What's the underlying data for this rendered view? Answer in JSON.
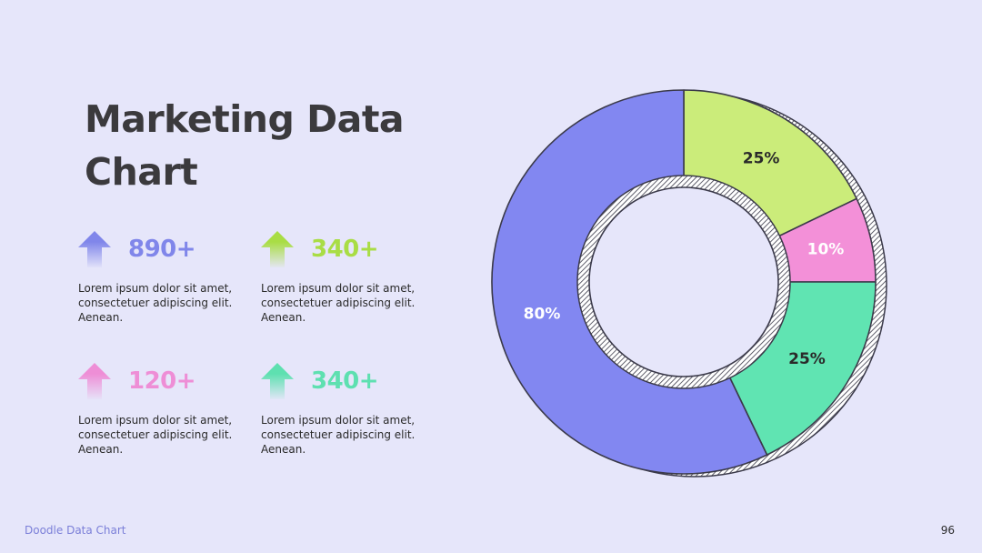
{
  "title": "Marketing Data Chart",
  "stats": [
    {
      "value": "890+",
      "color": "#8086ea",
      "description": "Lorem ipsum dolor sit amet, consectetuer adipiscing elit. Aenean."
    },
    {
      "value": "340+",
      "color": "#a9dd45",
      "description": "Lorem ipsum dolor sit amet, consectetuer adipiscing elit. Aenean."
    },
    {
      "value": "120+",
      "color": "#ee8ed6",
      "description": "Lorem ipsum dolor sit amet, consectetuer adipiscing elit. Aenean."
    },
    {
      "value": "340+",
      "color": "#5ee0b0",
      "description": "Lorem ipsum dolor sit amet, consectetuer adipiscing elit. Aenean."
    }
  ],
  "chart_data": {
    "type": "pie",
    "style": "donut",
    "slices": [
      {
        "label": "25%",
        "value": 25,
        "color": "#cbec7a",
        "label_color": "#2a2a2a"
      },
      {
        "label": "10%",
        "value": 10,
        "color": "#f390d8",
        "label_color": "#ffffff"
      },
      {
        "label": "25%",
        "value": 25,
        "color": "#60e4b2",
        "label_color": "#2a2a2a"
      },
      {
        "label": "80%",
        "value": 80,
        "color": "#8287f1",
        "label_color": "#ffffff"
      }
    ],
    "start_angle_deg": 0,
    "direction": "clockwise",
    "legend": "none"
  },
  "footer": {
    "label": "Doodle Data Chart",
    "page": "96"
  }
}
